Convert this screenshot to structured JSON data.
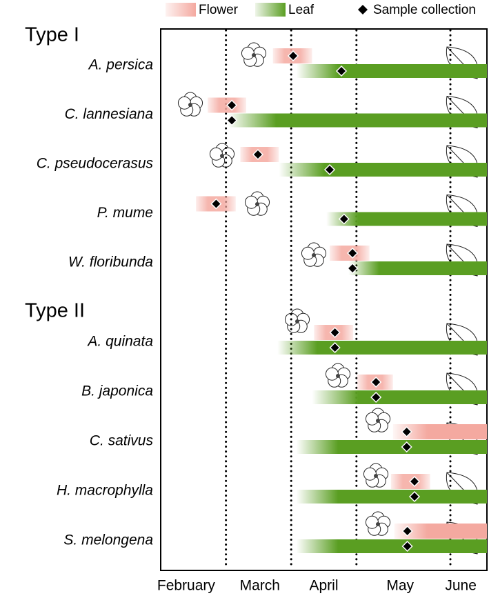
{
  "chart_data": {
    "type": "timeline",
    "legend": {
      "flower": "Flower",
      "leaf": "Leaf",
      "sample": "Sample collection"
    },
    "colors": {
      "flower": "#f4a9a0",
      "leaf": "#5a9e22",
      "sample": "#000000"
    },
    "xlim": [
      0,
      5
    ],
    "month_boundaries": [
      1,
      2,
      3,
      4.44
    ],
    "months": [
      {
        "value": 0.39,
        "label": "February"
      },
      {
        "value": 1.52,
        "label": "March"
      },
      {
        "value": 2.5,
        "label": "April"
      },
      {
        "value": 3.67,
        "label": "May"
      },
      {
        "value": 4.6,
        "label": "June"
      }
    ],
    "groups": [
      {
        "name": "Type I",
        "rows": [
          {
            "name": "A. persica",
            "flower": [
              1.72,
              2.32
            ],
            "flower_sample": 2.03,
            "leaf": [
              2.08,
              2.72,
              5
            ],
            "leaf_sample": 2.77
          },
          {
            "name": "C. lannesiana",
            "flower": [
              0.72,
              1.31
            ],
            "flower_sample": 1.09,
            "leaf": [
              1.03,
              1.77,
              5
            ],
            "leaf_sample": 1.09
          },
          {
            "name": "C. pseudocerasus",
            "flower": [
              1.22,
              1.81
            ],
            "flower_sample": 1.49,
            "leaf": [
              1.81,
              2.51,
              5
            ],
            "leaf_sample": 2.59
          },
          {
            "name": "P. mume",
            "flower": [
              0.54,
              1.15
            ],
            "flower_sample": 0.85,
            "leaf": [
              2.54,
              3.03,
              5
            ],
            "leaf_sample": 2.81
          },
          {
            "name": "W. floribunda",
            "flower": [
              2.59,
              3.2
            ],
            "flower_sample": 2.94,
            "leaf": [
              2.88,
              3.35,
              5
            ],
            "leaf_sample": 2.94
          }
        ]
      },
      {
        "name": "Type II",
        "rows": [
          {
            "name": "A. quinata",
            "flower": [
              2.35,
              2.95
            ],
            "flower_sample": 2.67,
            "leaf": [
              1.79,
              2.4,
              5
            ],
            "leaf_sample": 2.67
          },
          {
            "name": "B. japonica",
            "flower": [
              3.01,
              3.56
            ],
            "flower_sample": 3.3,
            "leaf": [
              2.32,
              3.03,
              5
            ],
            "leaf_sample": 3.3
          },
          {
            "name": "C. sativus",
            "flower": [
              3.56,
              4.09,
              5
            ],
            "flower_sample": 3.77,
            "leaf": [
              2.08,
              2.72,
              5
            ],
            "leaf_sample": 3.77
          },
          {
            "name": "H. macrophylla",
            "flower": [
              3.53,
              4.13
            ],
            "flower_sample": 3.89,
            "leaf": [
              2.08,
              2.72,
              5
            ],
            "leaf_sample": 3.89
          },
          {
            "name": "S. melongena",
            "flower": [
              3.58,
              4.09,
              5
            ],
            "flower_sample": 3.78,
            "leaf": [
              2.08,
              2.72,
              5
            ],
            "leaf_sample": 3.78
          }
        ]
      }
    ]
  }
}
